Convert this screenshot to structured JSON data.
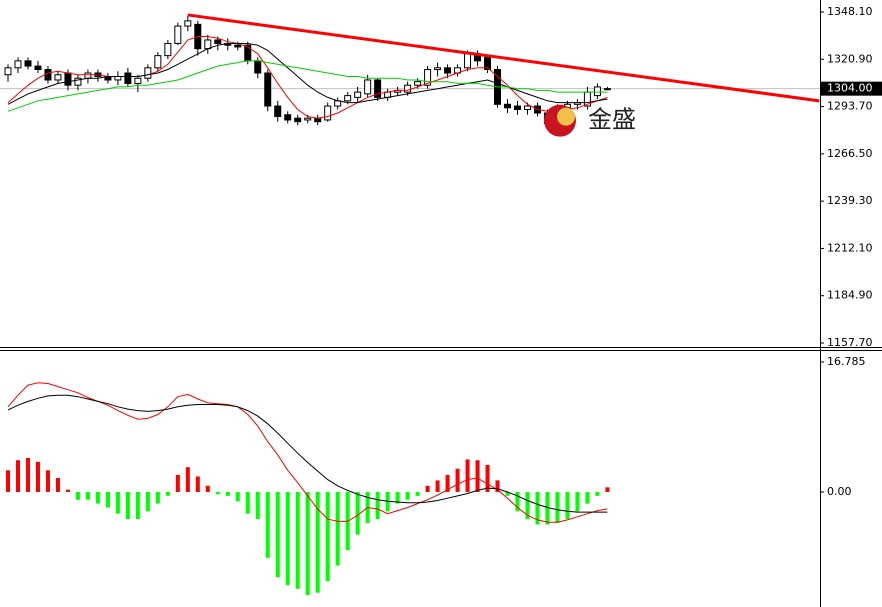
{
  "chart_data": [
    {
      "type": "candlestick",
      "open": [
        1312,
        1316,
        1320,
        1317,
        1315,
        1309,
        1313,
        1306,
        1310,
        1313,
        1311,
        1309,
        1313,
        1307,
        1310,
        1316,
        1323,
        1330,
        1340,
        1341,
        1327,
        1332,
        1330,
        1329,
        1329,
        1320,
        1313,
        1294,
        1289,
        1287,
        1286,
        1287,
        1286,
        1294,
        1297,
        1299,
        1301,
        1309,
        1299,
        1302,
        1302,
        1306,
        1306,
        1315,
        1316,
        1313,
        1316,
        1324,
        1322,
        1315,
        1295,
        1294,
        1292,
        1294,
        1290,
        1288,
        1293,
        1295,
        1294,
        1300,
        1304
      ],
      "high": [
        1318,
        1322,
        1322,
        1320,
        1317,
        1314,
        1315,
        1312,
        1315,
        1315,
        1313,
        1314,
        1316,
        1312,
        1318,
        1325,
        1332,
        1342,
        1346,
        1343,
        1335,
        1334,
        1333,
        1331,
        1331,
        1322,
        1315,
        1297,
        1291,
        1289,
        1289,
        1289,
        1296,
        1299,
        1302,
        1305,
        1312,
        1310,
        1304,
        1305,
        1308,
        1310,
        1317,
        1319,
        1318,
        1318,
        1326,
        1326,
        1323,
        1317,
        1298,
        1297,
        1296,
        1296,
        1292,
        1295,
        1297,
        1298,
        1305,
        1307,
        1305
      ],
      "low": [
        1308,
        1313,
        1315,
        1313,
        1307,
        1307,
        1303,
        1303,
        1307,
        1308,
        1307,
        1306,
        1305,
        1302,
        1308,
        1314,
        1321,
        1329,
        1337,
        1323,
        1324,
        1326,
        1326,
        1326,
        1318,
        1310,
        1291,
        1285,
        1284,
        1283,
        1284,
        1283,
        1285,
        1292,
        1295,
        1296,
        1299,
        1297,
        1297,
        1300,
        1300,
        1304,
        1304,
        1311,
        1310,
        1311,
        1314,
        1317,
        1313,
        1293,
        1290,
        1289,
        1289,
        1288,
        1281,
        1286,
        1291,
        1292,
        1292,
        1298,
        1303
      ],
      "close": [
        1316,
        1320,
        1317,
        1315,
        1309,
        1312,
        1306,
        1310,
        1313,
        1311,
        1309,
        1311,
        1307,
        1310,
        1316,
        1323,
        1330,
        1340,
        1343,
        1327,
        1332,
        1330,
        1329,
        1328,
        1320,
        1313,
        1294,
        1288,
        1286,
        1285,
        1287,
        1285,
        1294,
        1297,
        1300,
        1302,
        1309,
        1299,
        1302,
        1303,
        1306,
        1308,
        1315,
        1316,
        1313,
        1316,
        1324,
        1320,
        1315,
        1295,
        1293,
        1292,
        1294,
        1290,
        1284,
        1293,
        1295,
        1296,
        1302,
        1305,
        1304
      ],
      "up_color": "#ffffff",
      "down_color": "#000000",
      "outline": "#000000",
      "series": [
        {
          "color": "#ff0000",
          "values": [
            1296,
            1301,
            1306,
            1310,
            1313,
            1314,
            1313,
            1312,
            1312,
            1312,
            1311,
            1311,
            1311,
            1311,
            1312,
            1314,
            1318,
            1325,
            1332,
            1334,
            1334,
            1333,
            1331,
            1330,
            1328,
            1324,
            1316,
            1307,
            1299,
            1292,
            1288,
            1287,
            1288,
            1290,
            1293,
            1296,
            1299,
            1301,
            1302,
            1303,
            1303,
            1305,
            1307,
            1309,
            1311,
            1313,
            1315,
            1316,
            1316,
            1311,
            1306,
            1300,
            1295,
            1292,
            1291,
            1291,
            1292,
            1293,
            1295,
            1297,
            1299
          ]
        },
        {
          "color": "#000000",
          "values": [
            1295,
            1298,
            1301,
            1303,
            1305,
            1307,
            1308,
            1309,
            1310,
            1310,
            1311,
            1311,
            1311,
            1311,
            1312,
            1313,
            1315,
            1318,
            1321,
            1324,
            1327,
            1329,
            1330,
            1330,
            1330,
            1329,
            1326,
            1321,
            1316,
            1311,
            1306,
            1302,
            1299,
            1297,
            1296,
            1296,
            1297,
            1298,
            1299,
            1300,
            1301,
            1302,
            1303,
            1304,
            1305,
            1306,
            1307,
            1308,
            1309,
            1307,
            1305,
            1303,
            1301,
            1299,
            1297,
            1296,
            1296,
            1296,
            1296,
            1297,
            1298
          ]
        },
        {
          "color": "#00d000",
          "values": [
            1291,
            1293,
            1295,
            1297,
            1298,
            1299,
            1300,
            1301,
            1302,
            1303,
            1304,
            1305,
            1305,
            1306,
            1306,
            1307,
            1308,
            1309,
            1311,
            1313,
            1315,
            1317,
            1318,
            1319,
            1320,
            1320,
            1319,
            1318,
            1317,
            1316,
            1315,
            1314,
            1313,
            1312,
            1311,
            1311,
            1310,
            1310,
            1310,
            1310,
            1309,
            1309,
            1308,
            1308,
            1308,
            1307,
            1307,
            1307,
            1306,
            1305,
            1305,
            1304,
            1304,
            1303,
            1303,
            1302,
            1302,
            1302,
            1302,
            1302,
            1302
          ]
        }
      ],
      "trendline": {
        "color": "#ff0000",
        "start": [
          18,
          1346.4
        ],
        "end": [
          81.2,
          1297
        ]
      },
      "last_price": {
        "value": 1304,
        "label": "1304.00"
      },
      "ylim": [
        1155.4,
        1355.0
      ],
      "yticks": [
        {
          "value": 1157.7,
          "label": "1157.70"
        },
        {
          "value": 1184.9,
          "label": "1184.90"
        },
        {
          "value": 1212.1,
          "label": "1212.10"
        },
        {
          "value": 1239.3,
          "label": "1239.30"
        },
        {
          "value": 1266.5,
          "label": "1266.50"
        },
        {
          "value": 1293.7,
          "label": "1293.70"
        },
        {
          "value": 1320.9,
          "label": "1320.90"
        },
        {
          "value": 1348.1,
          "label": "1348.10"
        }
      ],
      "watermark": "金盛"
    },
    {
      "type": "macd",
      "histogram": [
        2.8,
        4.1,
        4.4,
        3.9,
        2.8,
        1.8,
        0.3,
        -1.0,
        -1.0,
        -1.5,
        -2.0,
        -2.8,
        -3.5,
        -3.5,
        -2.5,
        -1.5,
        -0.5,
        2.2,
        3.2,
        2.0,
        0.8,
        -0.3,
        -0.5,
        -1.2,
        -2.8,
        -3.5,
        -8.5,
        -11,
        -12,
        -12.5,
        -13.3,
        -13,
        -11.5,
        -9.5,
        -7.5,
        -5.5,
        -4,
        -3.5,
        -2.5,
        -1.5,
        -1.0,
        -0.5,
        0.8,
        1.5,
        2.2,
        3.0,
        4.2,
        4.1,
        3.5,
        1.5,
        -0.5,
        -2.5,
        -3.5,
        -4.2,
        -4.2,
        -4.0,
        -3.5,
        -2.5,
        -1.5,
        -0.5,
        0.6
      ],
      "up_color": "#ff0000",
      "down_color": "#00ff00",
      "series": [
        {
          "color": "#ff0000",
          "values": [
            11,
            12.5,
            13.8,
            14.1,
            14,
            13.6,
            13.2,
            12.8,
            12.2,
            11.7,
            11.2,
            10.5,
            9.9,
            9.4,
            9.5,
            10,
            11,
            12.3,
            12.6,
            12,
            11.5,
            11.4,
            11.3,
            11,
            10,
            8.5,
            6.5,
            4.8,
            2.8,
            1.2,
            -0.5,
            -2.2,
            -3.5,
            -3.8,
            -3.8,
            -3,
            -2,
            -2.2,
            -2.8,
            -2.4,
            -2,
            -1.5,
            -1,
            -0.4,
            0.3,
            1,
            1.6,
            1.8,
            1,
            0.3,
            -0.8,
            -2,
            -3,
            -3.6,
            -3.9,
            -3.9,
            -3.6,
            -3.2,
            -2.8,
            -2.4,
            -2.2
          ]
        },
        {
          "color": "#000000",
          "values": [
            10.6,
            11.2,
            11.7,
            12.1,
            12.4,
            12.5,
            12.5,
            12.3,
            12,
            11.7,
            11.4,
            11,
            10.7,
            10.5,
            10.4,
            10.5,
            10.7,
            11,
            11.2,
            11.3,
            11.3,
            11.3,
            11.2,
            11,
            10.5,
            9.8,
            8.8,
            7.6,
            6.3,
            5,
            3.8,
            2.7,
            1.6,
            0.8,
            0.2,
            -0.3,
            -0.7,
            -1,
            -1.2,
            -1.3,
            -1.4,
            -1.4,
            -1.3,
            -1.1,
            -0.8,
            -0.5,
            -0.2,
            0.2,
            0.5,
            0.4,
            0,
            -0.5,
            -1.1,
            -1.6,
            -2,
            -2.3,
            -2.5,
            -2.6,
            -2.6,
            -2.6,
            -2.6
          ]
        }
      ],
      "ylim": [
        -14.85,
        18.33
      ],
      "yticks": [
        {
          "value": 0,
          "label": "0.00"
        },
        {
          "value": 16.785,
          "label": "16.785"
        }
      ]
    }
  ]
}
